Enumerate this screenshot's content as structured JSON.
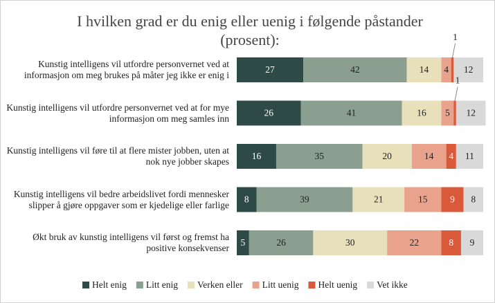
{
  "chart_data": {
    "type": "stacked-bar-horizontal",
    "title": "I hvilken grad er du enig eller uenig i følgende påstander (prosent):",
    "categories": [
      "Kunstig intelligens vil utfordre personvernet ved at informasjon om meg brukes på måter jeg ikke er enig i",
      "Kunstig intelligens vil utfordre personvernet ved at for mye informasjon om meg samles inn",
      "Kunstig intelligens vil føre til at flere mister jobben, uten at nok nye jobber skapes",
      "Kunstig intelligens vil bedre arbeidslivet fordi mennesker slipper å gjøre oppgaver som er kjedelige eller farlige",
      "Økt bruk av kunstig intelligens vil først og fremst ha positive konsekvenser"
    ],
    "series": [
      {
        "name": "Helt enig",
        "color": "#2e4a46",
        "values": [
          27,
          26,
          16,
          8,
          5
        ]
      },
      {
        "name": "Litt enig",
        "color": "#8a9f90",
        "values": [
          42,
          41,
          35,
          39,
          26
        ]
      },
      {
        "name": "Verken eller",
        "color": "#e7e0bb",
        "values": [
          14,
          16,
          20,
          21,
          30
        ]
      },
      {
        "name": "Litt uenig",
        "color": "#e9a28c",
        "values": [
          4,
          5,
          14,
          15,
          22
        ]
      },
      {
        "name": "Helt uenig",
        "color": "#d9593b",
        "values": [
          1,
          1,
          4,
          9,
          8
        ]
      },
      {
        "name": "Vet ikke",
        "color": "#d9d9d9",
        "values": [
          12,
          12,
          11,
          8,
          9
        ]
      }
    ],
    "legend": "bottom"
  }
}
